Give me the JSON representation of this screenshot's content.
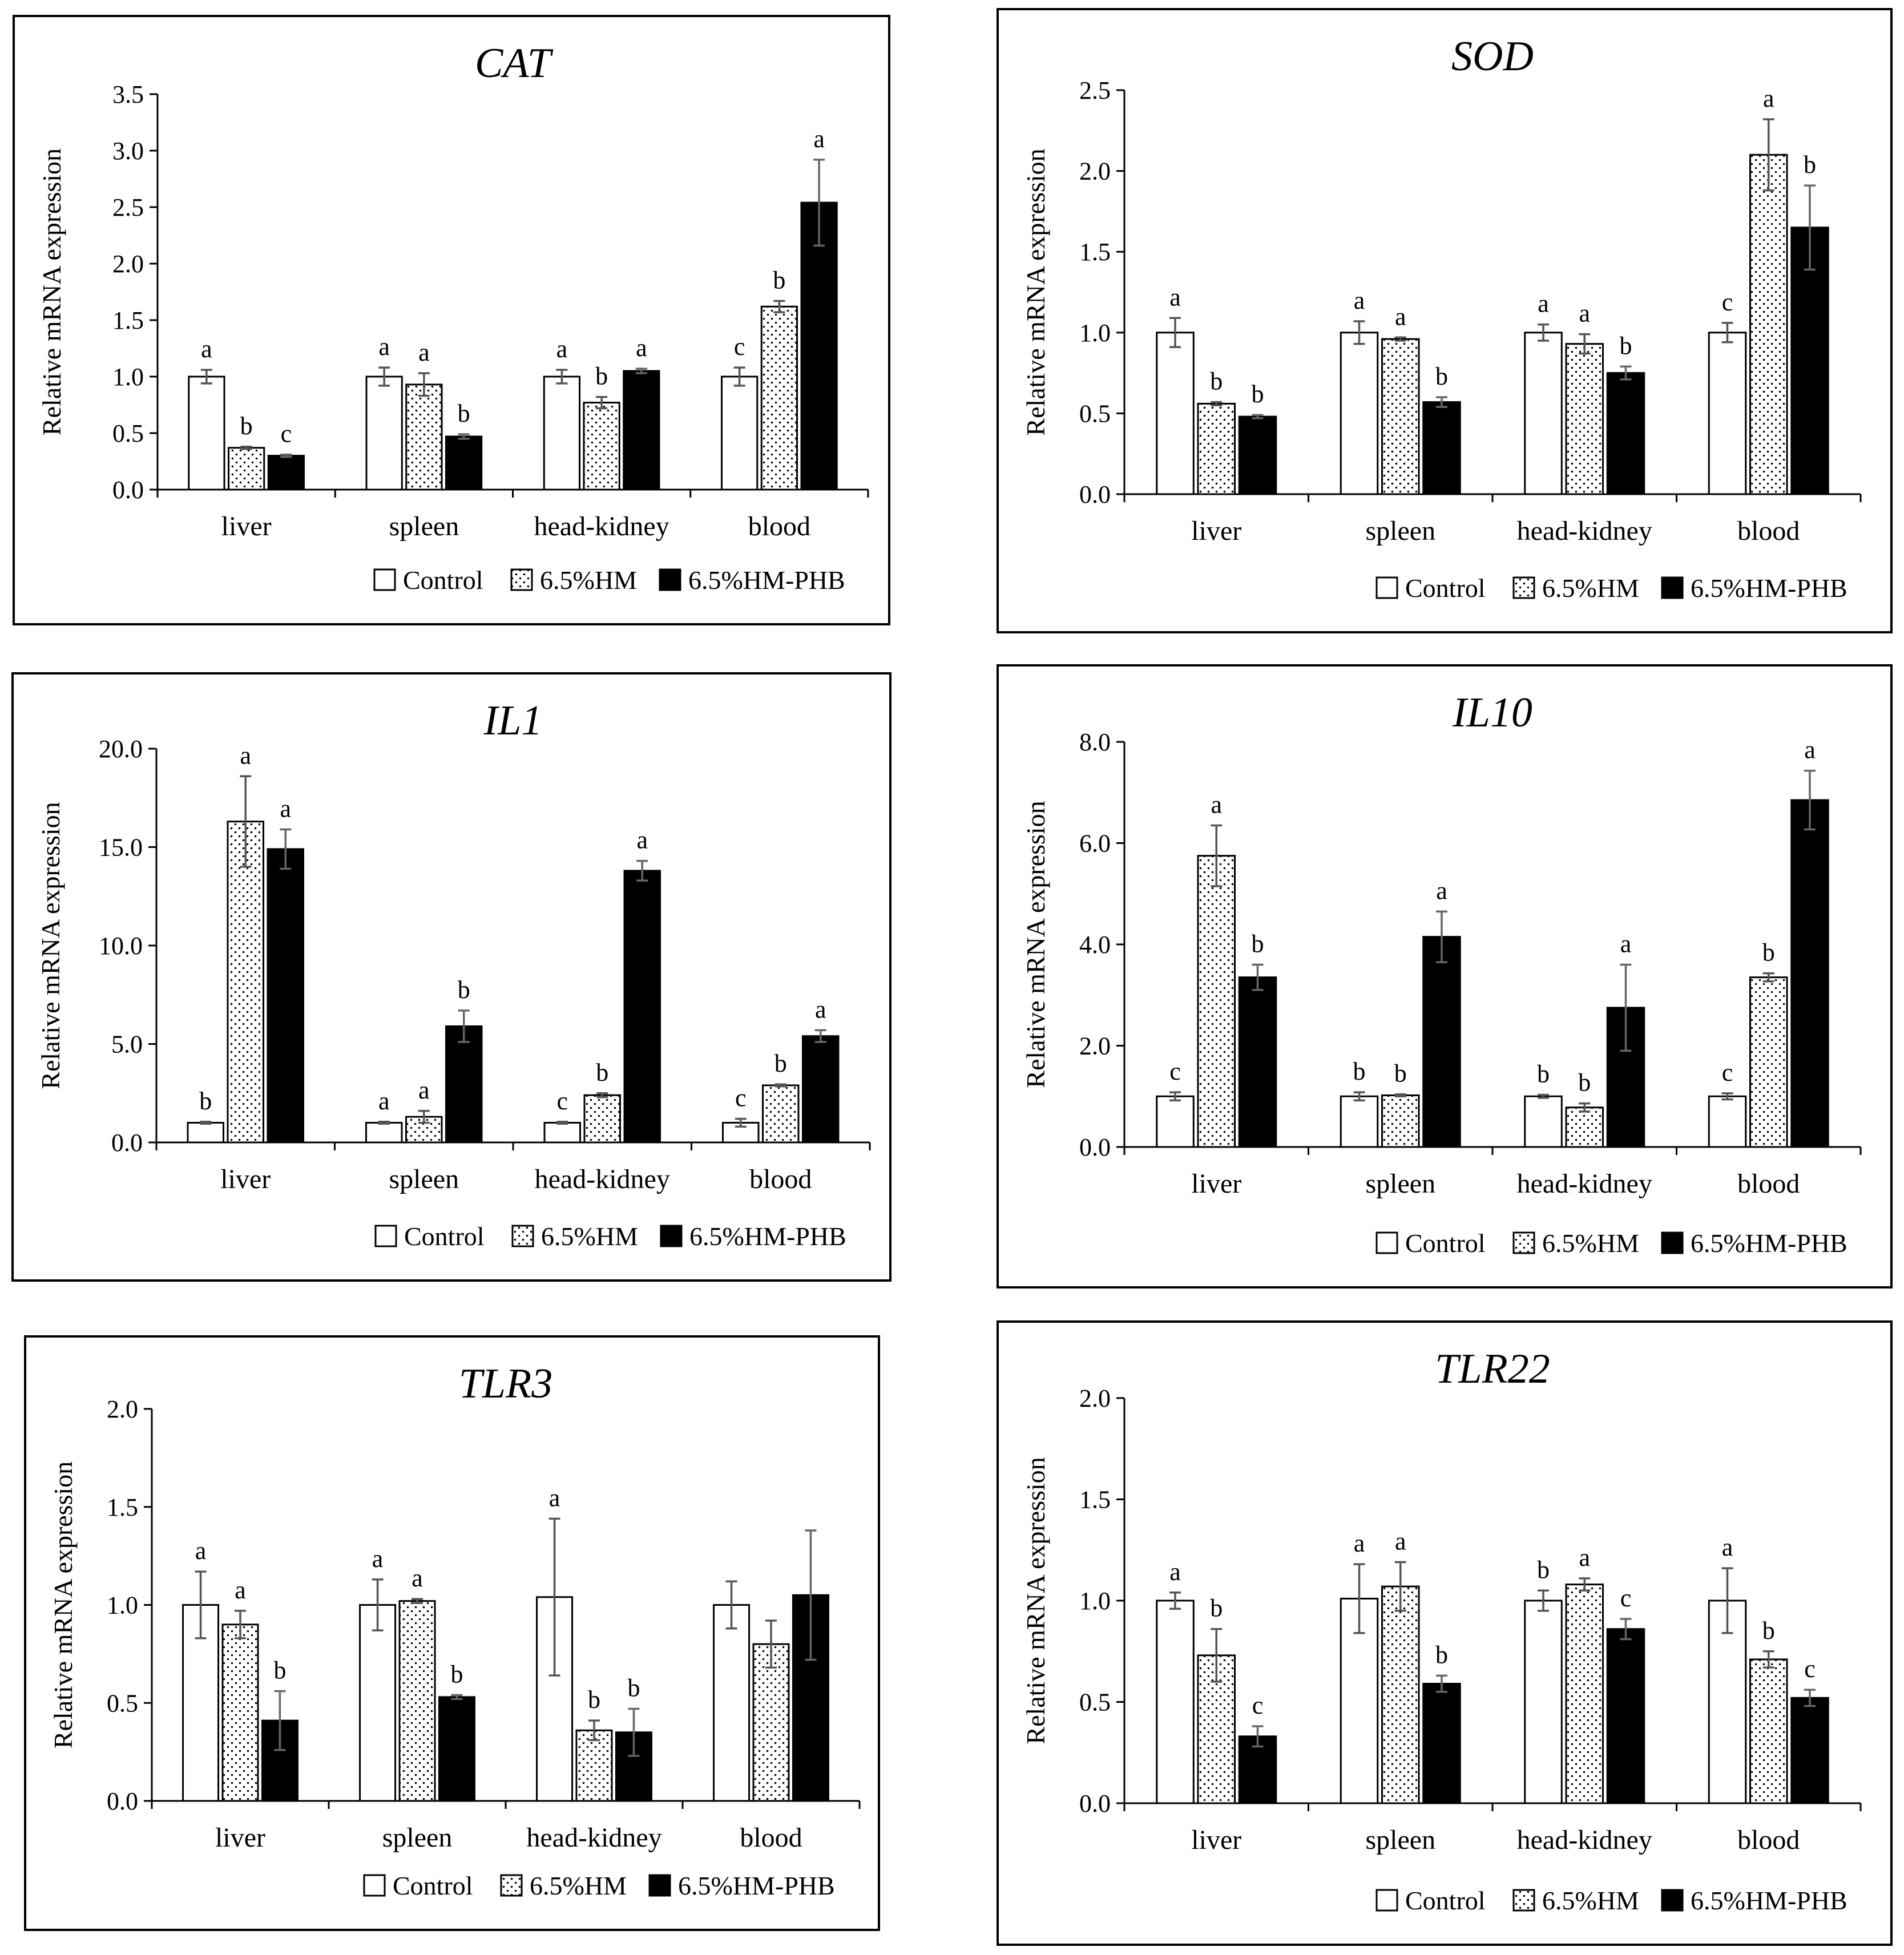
{
  "legend": [
    "Control",
    "6.5%HM",
    "6.5%HM-PHB"
  ],
  "colors": {
    "control": "#ffffff",
    "hm": "#ffffff",
    "phb": "#000000",
    "error": "#555555"
  },
  "chart_data": [
    {
      "type": "bar",
      "title": "CAT",
      "ylabel": "Relative mRNA  expression",
      "xlabel": "",
      "ylim": [
        0,
        3.5
      ],
      "yticks": [
        "0.0",
        "0.5",
        "1.0",
        "1.5",
        "2.0",
        "2.5",
        "3.0",
        "3.5"
      ],
      "categories": [
        "liver",
        "spleen",
        "head-kidney",
        "blood"
      ],
      "series": [
        {
          "name": "Control",
          "values": [
            1.0,
            1.0,
            1.0,
            1.0
          ],
          "errors": [
            0.06,
            0.08,
            0.06,
            0.08
          ],
          "labels": [
            "a",
            "a",
            "a",
            "c"
          ]
        },
        {
          "name": "6.5%HM",
          "values": [
            0.37,
            0.93,
            0.77,
            1.62
          ],
          "errors": [
            0.01,
            0.1,
            0.05,
            0.05
          ],
          "labels": [
            "b",
            "a",
            "b",
            "b"
          ]
        },
        {
          "name": "6.5%HM-PHB",
          "values": [
            0.3,
            0.47,
            1.05,
            2.54
          ],
          "errors": [
            0.01,
            0.02,
            0.02,
            0.38
          ],
          "labels": [
            "c",
            "b",
            "a",
            "a"
          ]
        }
      ],
      "legend": "bottom-right"
    },
    {
      "type": "bar",
      "title": "SOD",
      "ylabel": "Relative mRNA  expression",
      "xlabel": "",
      "ylim": [
        0,
        2.5
      ],
      "yticks": [
        "0.0",
        "0.5",
        "1.0",
        "1.5",
        "2.0",
        "2.5"
      ],
      "categories": [
        "liver",
        "spleen",
        "head-kidney",
        "blood"
      ],
      "series": [
        {
          "name": "Control",
          "values": [
            1.0,
            1.0,
            1.0,
            1.0
          ],
          "errors": [
            0.09,
            0.07,
            0.05,
            0.06
          ],
          "labels": [
            "a",
            "a",
            "a",
            "c"
          ]
        },
        {
          "name": "6.5%HM",
          "values": [
            0.56,
            0.96,
            0.93,
            2.1
          ],
          "errors": [
            0.01,
            0.01,
            0.06,
            0.22
          ],
          "labels": [
            "b",
            "a",
            "a",
            "a"
          ]
        },
        {
          "name": "6.5%HM-PHB",
          "values": [
            0.48,
            0.57,
            0.75,
            1.65
          ],
          "errors": [
            0.01,
            0.03,
            0.04,
            0.26
          ],
          "labels": [
            "b",
            "b",
            "b",
            "b"
          ]
        }
      ],
      "legend": "bottom-right"
    },
    {
      "type": "bar",
      "title": "IL1",
      "ylabel": "Relative mRNA  expression",
      "xlabel": "",
      "ylim": [
        0,
        20
      ],
      "yticks": [
        "0.0",
        "5.0",
        "10.0",
        "15.0",
        "20.0"
      ],
      "categories": [
        "liver",
        "spleen",
        "head-kidney",
        "blood"
      ],
      "series": [
        {
          "name": "Control",
          "values": [
            1.0,
            1.0,
            1.0,
            1.0
          ],
          "errors": [
            0.05,
            0.05,
            0.05,
            0.2
          ],
          "labels": [
            "b",
            "a",
            "c",
            "c"
          ]
        },
        {
          "name": "6.5%HM",
          "values": [
            16.3,
            1.3,
            2.4,
            2.9
          ],
          "errors": [
            2.3,
            0.3,
            0.1,
            0.05
          ],
          "labels": [
            "a",
            "a",
            "b",
            "b"
          ]
        },
        {
          "name": "6.5%HM-PHB",
          "values": [
            14.9,
            5.9,
            13.8,
            5.4
          ],
          "errors": [
            1.0,
            0.8,
            0.5,
            0.3
          ],
          "labels": [
            "a",
            "b",
            "a",
            "a"
          ]
        }
      ],
      "legend": "bottom-right"
    },
    {
      "type": "bar",
      "title": "IL10",
      "ylabel": "Relative mRNA  expression",
      "xlabel": "",
      "ylim": [
        0,
        8
      ],
      "yticks": [
        "0.0",
        "2.0",
        "4.0",
        "6.0",
        "8.0"
      ],
      "categories": [
        "liver",
        "spleen",
        "head-kidney",
        "blood"
      ],
      "series": [
        {
          "name": "Control",
          "values": [
            1.0,
            1.0,
            1.0,
            1.0
          ],
          "errors": [
            0.08,
            0.08,
            0.03,
            0.06
          ],
          "labels": [
            "c",
            "b",
            "b",
            "c"
          ]
        },
        {
          "name": "6.5%HM",
          "values": [
            5.75,
            1.02,
            0.78,
            3.35
          ],
          "errors": [
            0.6,
            0.02,
            0.08,
            0.08
          ],
          "labels": [
            "a",
            "b",
            "b",
            "b"
          ]
        },
        {
          "name": "6.5%HM-PHB",
          "values": [
            3.35,
            4.15,
            2.75,
            6.85
          ],
          "errors": [
            0.25,
            0.5,
            0.85,
            0.58
          ],
          "labels": [
            "b",
            "a",
            "a",
            "a"
          ]
        }
      ],
      "legend": "bottom-right"
    },
    {
      "type": "bar",
      "title": "TLR3",
      "ylabel": "Relative mRNA  expression",
      "xlabel": "",
      "ylim": [
        0,
        2.0
      ],
      "yticks": [
        "0.0",
        "0.5",
        "1.0",
        "1.5",
        "2.0"
      ],
      "categories": [
        "liver",
        "spleen",
        "head-kidney",
        "blood"
      ],
      "series": [
        {
          "name": "Control",
          "values": [
            1.0,
            1.0,
            1.04,
            1.0
          ],
          "errors": [
            0.17,
            0.13,
            0.4,
            0.12
          ],
          "labels": [
            "a",
            "a",
            "a",
            ""
          ]
        },
        {
          "name": "6.5%HM",
          "values": [
            0.9,
            1.02,
            0.36,
            0.8
          ],
          "errors": [
            0.07,
            0.01,
            0.05,
            0.12
          ],
          "labels": [
            "a",
            "a",
            "b",
            ""
          ]
        },
        {
          "name": "6.5%HM-PHB",
          "values": [
            0.41,
            0.53,
            0.35,
            1.05
          ],
          "errors": [
            0.15,
            0.01,
            0.12,
            0.33
          ],
          "labels": [
            "b",
            "b",
            "b",
            ""
          ]
        }
      ],
      "legend": "bottom-right"
    },
    {
      "type": "bar",
      "title": "TLR22",
      "ylabel": "Relative mRNA  expression",
      "xlabel": "",
      "ylim": [
        0,
        2.0
      ],
      "yticks": [
        "0.0",
        "0.5",
        "1.0",
        "1.5",
        "2.0"
      ],
      "categories": [
        "liver",
        "spleen",
        "head-kidney",
        "blood"
      ],
      "series": [
        {
          "name": "Control",
          "values": [
            1.0,
            1.01,
            1.0,
            1.0
          ],
          "errors": [
            0.04,
            0.17,
            0.05,
            0.16
          ],
          "labels": [
            "a",
            "a",
            "b",
            "a"
          ]
        },
        {
          "name": "6.5%HM",
          "values": [
            0.73,
            1.07,
            1.08,
            0.71
          ],
          "errors": [
            0.13,
            0.12,
            0.03,
            0.04
          ],
          "labels": [
            "b",
            "a",
            "a",
            "b"
          ]
        },
        {
          "name": "6.5%HM-PHB",
          "values": [
            0.33,
            0.59,
            0.86,
            0.52
          ],
          "errors": [
            0.05,
            0.04,
            0.05,
            0.04
          ],
          "labels": [
            "c",
            "b",
            "c",
            "c"
          ]
        }
      ],
      "legend": "bottom-right"
    }
  ]
}
